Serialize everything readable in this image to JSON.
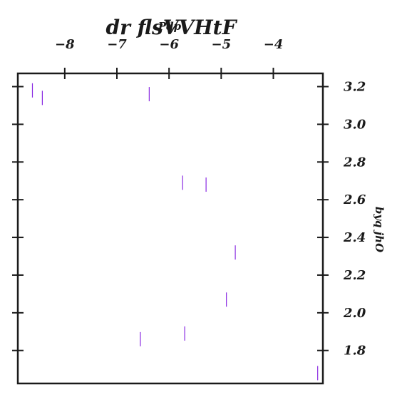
{
  "chart_data": {
    "type": "scatter",
    "title": "dr  flsVVHtF",
    "xlabel": "Pdp",
    "ylabel": "byq jhO",
    "marker": "vertical-line",
    "marker_color": "#8a2be2",
    "axis_color": "#1a1a1a",
    "xlim": [
      -8.9,
      -3.05
    ],
    "ylim": [
      1.625,
      3.27
    ],
    "x_ticks": [
      -8,
      -7,
      -6,
      -5,
      -4
    ],
    "x_tick_labels": [
      "−8",
      "−7",
      "−6",
      "−5",
      "−4"
    ],
    "y_ticks": [
      1.8,
      2.0,
      2.2,
      2.4,
      2.6,
      2.8,
      3.0,
      3.2
    ],
    "y_tick_labels": [
      "1.8",
      "2.0",
      "2.2",
      "2.4",
      "2.6",
      "2.8",
      "3.0",
      "3.2"
    ],
    "x_axis_position": "top",
    "y_axis_position": "right",
    "grid": false,
    "points": [
      {
        "x": -8.62,
        "y": 3.18
      },
      {
        "x": -8.43,
        "y": 3.14
      },
      {
        "x": -6.38,
        "y": 3.16
      },
      {
        "x": -5.74,
        "y": 2.69
      },
      {
        "x": -5.29,
        "y": 2.68
      },
      {
        "x": -4.73,
        "y": 2.32
      },
      {
        "x": -4.9,
        "y": 2.07
      },
      {
        "x": -5.7,
        "y": 1.89
      },
      {
        "x": -6.55,
        "y": 1.86
      },
      {
        "x": -3.15,
        "y": 1.68
      }
    ]
  }
}
